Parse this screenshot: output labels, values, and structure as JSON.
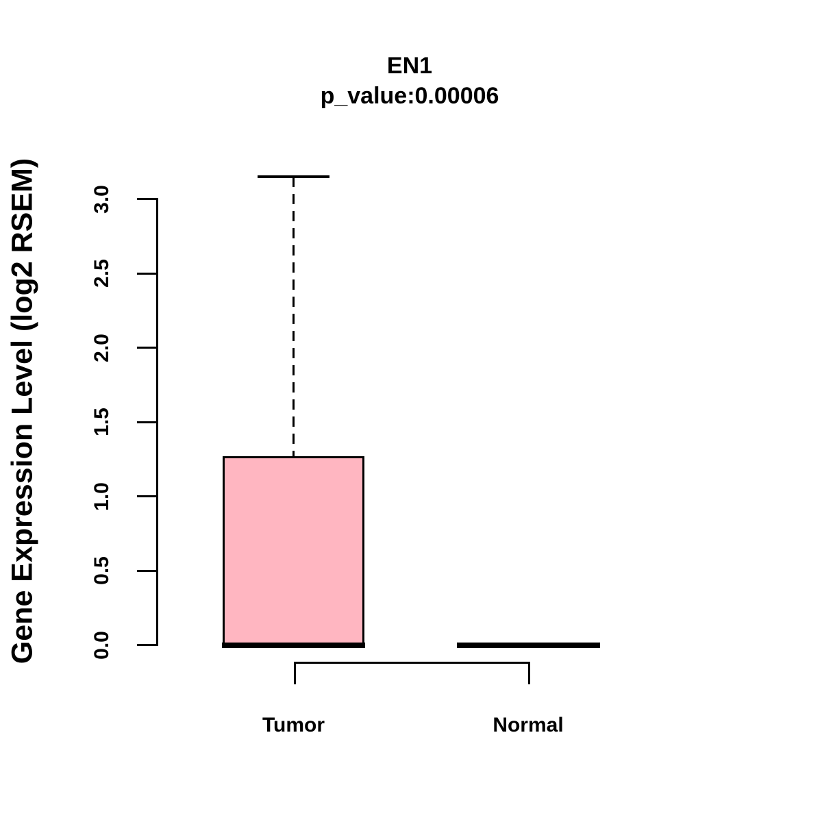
{
  "header": {
    "title": "EN1",
    "subtitle": "p_value:0.00006"
  },
  "chart_data": {
    "type": "boxplot",
    "title": "EN1",
    "subtitle": "p_value:0.00006",
    "xlabel": "",
    "ylabel": "Gene Expression Level (log2 RSEM)",
    "categories": [
      "Tumor",
      "Normal"
    ],
    "ytick_labels": [
      "0.0",
      "0.5",
      "1.0",
      "1.5",
      "2.0",
      "2.5",
      "3.0"
    ],
    "yticks": [
      0.0,
      0.5,
      1.0,
      1.5,
      2.0,
      2.5,
      3.0
    ],
    "ylim": [
      0,
      3.16
    ],
    "grid": false,
    "legend_position": "none",
    "series": [
      {
        "name": "Tumor",
        "whisker_low": 0,
        "q1": 0,
        "median": 0,
        "q3": 1.27,
        "whisker_high": 3.15,
        "fill": "#FFB6C1"
      },
      {
        "name": "Normal",
        "whisker_low": 0,
        "q1": 0,
        "median": 0,
        "q3": 0,
        "whisker_high": 0,
        "fill": "#FFB6C1"
      }
    ],
    "colors": {
      "box_fill": "#FFB6C1",
      "line": "#000000",
      "background": "#FFFFFF"
    }
  }
}
